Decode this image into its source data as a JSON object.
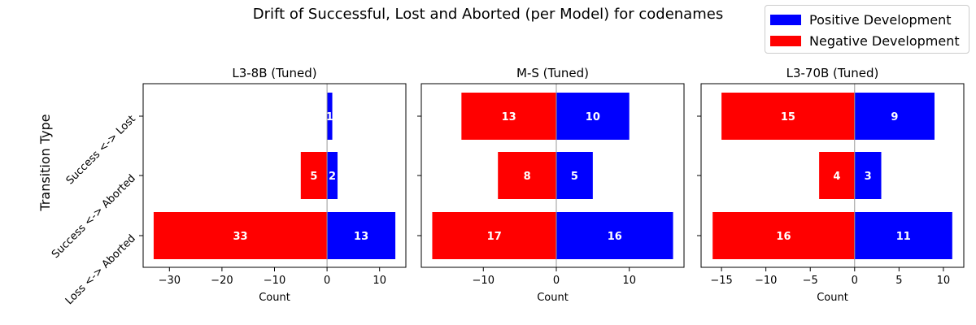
{
  "chart_data": {
    "type": "bar",
    "orientation": "horizontal-diverging",
    "title": "Drift of Successful, Lost and Aborted (per Model) for codenames",
    "ylabel": "Transition Type",
    "xlabel": "Count",
    "categories": [
      "Success <-> Lost",
      "Success <-> Aborted",
      "Loss <-> Aborted"
    ],
    "legend": {
      "placement": "top-right",
      "entries": [
        {
          "name": "Positive Development",
          "color": "#0000ff"
        },
        {
          "name": "Negative Development",
          "color": "#ff0000"
        }
      ]
    },
    "panels": [
      {
        "title": "L3-8B (Tuned)",
        "xlim": [
          -35,
          15
        ],
        "xticks": [
          -30,
          -20,
          -10,
          0,
          10
        ],
        "xtick_labels": [
          "−30",
          "−20",
          "−10",
          "0",
          "10"
        ],
        "series": [
          {
            "name": "Positive Development",
            "values": [
              1,
              2,
              13
            ]
          },
          {
            "name": "Negative Development",
            "values": [
              0,
              -5,
              -33
            ]
          }
        ]
      },
      {
        "title": "M-S (Tuned)",
        "xlim": [
          -18.5,
          17.5
        ],
        "xticks": [
          -10,
          0,
          10
        ],
        "xtick_labels": [
          "−10",
          "0",
          "10"
        ],
        "series": [
          {
            "name": "Positive Development",
            "values": [
              10,
              5,
              16
            ]
          },
          {
            "name": "Negative Development",
            "values": [
              -13,
              -8,
              -17
            ]
          }
        ]
      },
      {
        "title": "L3-70B (Tuned)",
        "xlim": [
          -17.3,
          12.3
        ],
        "xticks": [
          -15,
          -10,
          -5,
          0,
          5,
          10
        ],
        "xtick_labels": [
          "−15",
          "−10",
          "−5",
          "0",
          "5",
          "10"
        ],
        "series": [
          {
            "name": "Positive Development",
            "values": [
              9,
              3,
              11
            ]
          },
          {
            "name": "Negative Development",
            "values": [
              -15,
              -4,
              -16
            ]
          }
        ]
      }
    ],
    "grid": false
  }
}
